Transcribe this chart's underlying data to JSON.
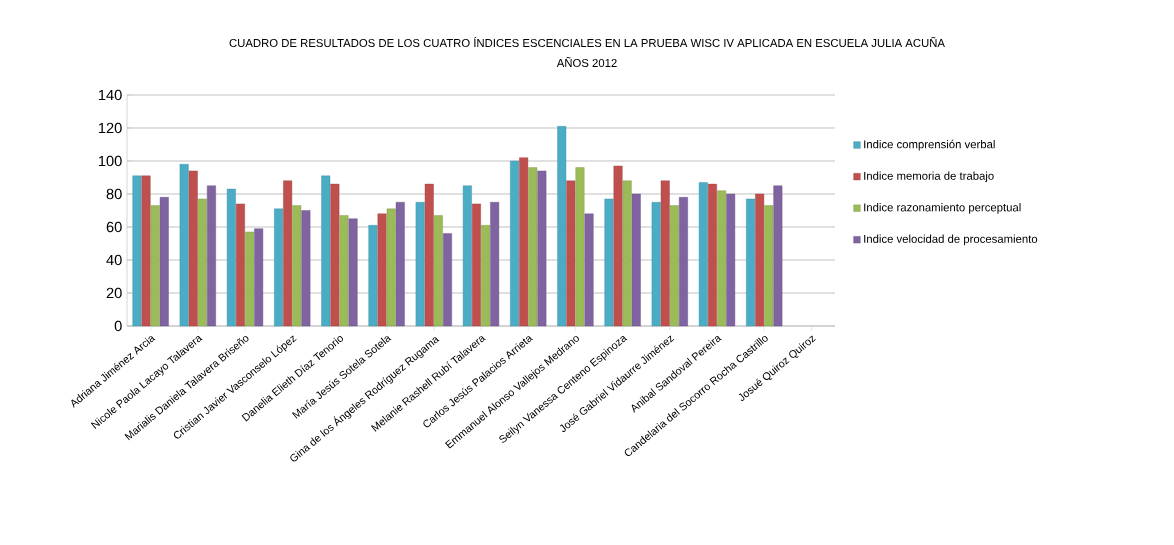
{
  "chart_data": {
    "type": "bar",
    "title": "CUADRO DE RESULTADOS DE LOS CUATRO ÍNDICES ESCENCIALES EN LA PRUEBA WISC IV APLICADA EN ESCUELA JULIA ACUÑA",
    "subtitle": "AÑOS 2012",
    "categories": [
      "Adriana Jiménez Arcia",
      "Nicole Paola Lacayo Talavera",
      "Marialis Daniela Talavera Briseño",
      "Cristian Javier Vasconselo López",
      "Danelia Elieth Díaz Tenorio",
      "María Jesús Sotela Sotela",
      "Gina de los Ángeles Rodríguez Rugama",
      "Melanie Rashell Rubí Talavera",
      "Carlos Jesús Palacios Arrieta",
      "Emmanuel Alonso Vallejos Medrano",
      "Seilyn Vanessa Centeno Espinoza",
      "José Gabriel Vidaurre Jiménez",
      "Anibal Sandoval Pereira",
      "Candelaria del Socorro Rocha Castrillo",
      "Josué Quiroz Quiroz"
    ],
    "series": [
      {
        "name": "Indice comprensión verbal",
        "color": "#4bacc6",
        "values": [
          91,
          98,
          83,
          71,
          91,
          61,
          75,
          85,
          100,
          121,
          77,
          75,
          87,
          77,
          null
        ]
      },
      {
        "name": "Indice memoria de trabajo",
        "color": "#c0504d",
        "values": [
          91,
          94,
          74,
          88,
          86,
          68,
          86,
          74,
          102,
          88,
          97,
          88,
          86,
          80,
          null
        ]
      },
      {
        "name": "Indice razonamiento perceptual",
        "color": "#9bbb59",
        "values": [
          73,
          77,
          57,
          73,
          67,
          71,
          67,
          61,
          96,
          96,
          88,
          73,
          82,
          73,
          null
        ]
      },
      {
        "name": "Indice velocidad de procesamiento",
        "color": "#8064a2",
        "values": [
          78,
          85,
          59,
          70,
          65,
          75,
          56,
          75,
          94,
          68,
          80,
          78,
          80,
          85,
          null
        ]
      }
    ],
    "ylim": [
      0,
      140
    ],
    "yticks": [
      0,
      20,
      40,
      60,
      80,
      100,
      120,
      140
    ],
    "grid": "y",
    "legend": "right"
  }
}
